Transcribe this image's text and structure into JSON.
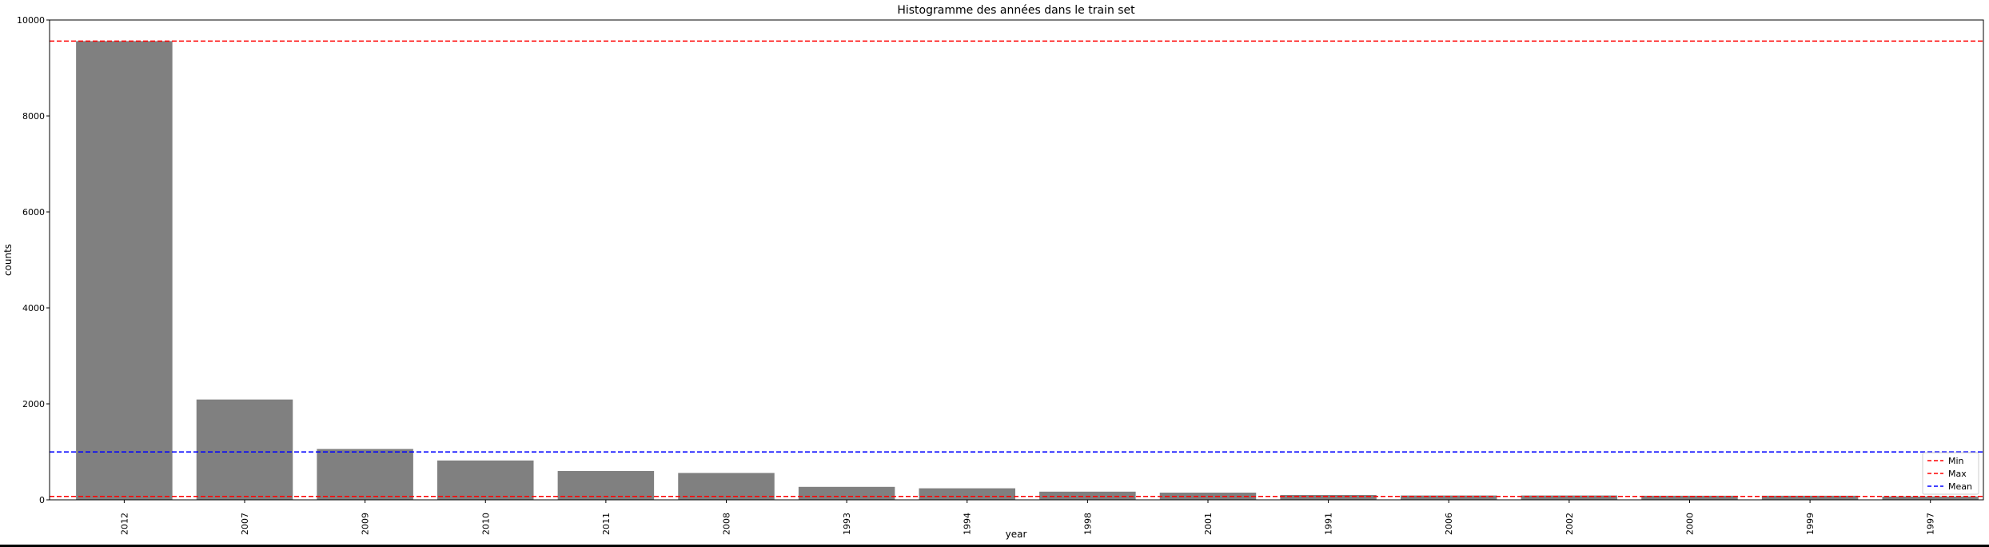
{
  "chart_data": {
    "type": "bar",
    "title": "Histogramme des années dans le train set",
    "xlabel": "year",
    "ylabel": "counts",
    "ylim": [
      0,
      10000
    ],
    "yticks": [
      0,
      2000,
      4000,
      6000,
      8000,
      10000
    ],
    "categories": [
      "2012",
      "2007",
      "2009",
      "2010",
      "2011",
      "2008",
      "1993",
      "1994",
      "1998",
      "2001",
      "1991",
      "2006",
      "2002",
      "2000",
      "1999",
      "1997"
    ],
    "values": [
      9560,
      2090,
      1060,
      820,
      600,
      560,
      270,
      240,
      170,
      150,
      100,
      90,
      90,
      85,
      85,
      70
    ],
    "bar_color": "#808080",
    "grid": false,
    "reference_lines": [
      {
        "name": "Min",
        "value": 70,
        "color": "#ff0000",
        "style": "dashed"
      },
      {
        "name": "Max",
        "value": 9560,
        "color": "#ff0000",
        "style": "dashed"
      },
      {
        "name": "Mean",
        "value": 997,
        "color": "#0000ff",
        "style": "dashed"
      }
    ],
    "legend_position": "bottom-right"
  }
}
